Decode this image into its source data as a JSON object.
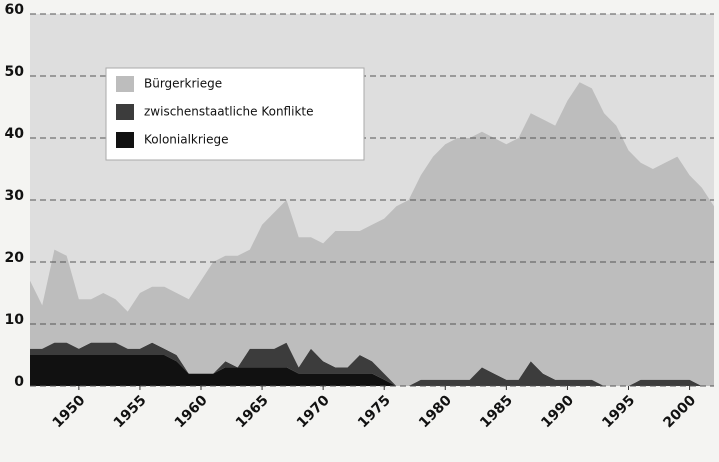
{
  "chart_data": {
    "type": "area",
    "stacked": true,
    "x": [
      1946,
      1947,
      1948,
      1949,
      1950,
      1951,
      1952,
      1953,
      1954,
      1955,
      1956,
      1957,
      1958,
      1959,
      1960,
      1961,
      1962,
      1963,
      1964,
      1965,
      1966,
      1967,
      1968,
      1969,
      1970,
      1971,
      1972,
      1973,
      1974,
      1975,
      1976,
      1977,
      1978,
      1979,
      1980,
      1981,
      1982,
      1983,
      1984,
      1985,
      1986,
      1987,
      1988,
      1989,
      1990,
      1991,
      1992,
      1993,
      1994,
      1995,
      1996,
      1997,
      1998,
      1999,
      2000,
      2001,
      2002
    ],
    "series": [
      {
        "name": "Kolonialkriege",
        "color": "#111111",
        "values": [
          5,
          5,
          5,
          5,
          5,
          5,
          5,
          5,
          5,
          5,
          5,
          5,
          4,
          2,
          2,
          2,
          3,
          3,
          3,
          3,
          3,
          3,
          2,
          2,
          2,
          2,
          2,
          2,
          2,
          1,
          0,
          0,
          0,
          0,
          0,
          0,
          0,
          0,
          0,
          0,
          0,
          0,
          0,
          0,
          0,
          0,
          0,
          0,
          0,
          0,
          0,
          0,
          0,
          0,
          0,
          0,
          0
        ]
      },
      {
        "name": "zwischenstaatliche Konflikte",
        "color": "#3c3c3c",
        "values": [
          1,
          1,
          2,
          2,
          1,
          2,
          2,
          2,
          1,
          1,
          2,
          1,
          1,
          0,
          0,
          0,
          1,
          0,
          3,
          3,
          3,
          4,
          1,
          4,
          2,
          1,
          1,
          3,
          2,
          1,
          0,
          0,
          1,
          1,
          1,
          1,
          1,
          3,
          2,
          1,
          1,
          4,
          2,
          1,
          1,
          1,
          1,
          0,
          0,
          0,
          1,
          1,
          1,
          1,
          1,
          0,
          0
        ]
      },
      {
        "name": "Bürgerkriege",
        "color": "#bdbdbd",
        "values": [
          11,
          7,
          15,
          14,
          8,
          7,
          8,
          7,
          6,
          9,
          9,
          10,
          10,
          12,
          15,
          18,
          17,
          18,
          16,
          20,
          22,
          23,
          21,
          18,
          19,
          22,
          22,
          20,
          22,
          25,
          29,
          30,
          33,
          36,
          38,
          39,
          39,
          38,
          38,
          38,
          39,
          40,
          41,
          41,
          45,
          48,
          47,
          44,
          42,
          38,
          35,
          34,
          35,
          36,
          33,
          32,
          29
        ]
      }
    ],
    "xlim": [
      1946,
      2002
    ],
    "xticks": [
      1950,
      1955,
      1960,
      1965,
      1970,
      1975,
      1980,
      1985,
      1990,
      1995,
      2000
    ],
    "ylim": [
      0,
      60
    ],
    "yticks": [
      0,
      10,
      20,
      30,
      40,
      50,
      60
    ],
    "grid": true,
    "legend": "upper left"
  }
}
